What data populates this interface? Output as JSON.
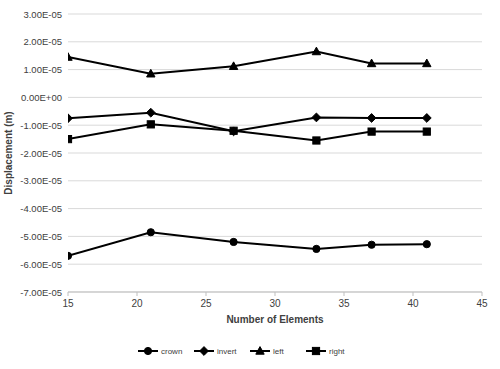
{
  "chart_data": {
    "type": "line",
    "x_label": "Number of Elements",
    "y_label": "Displacement (m)",
    "x": [
      15,
      21,
      27,
      33,
      37,
      41
    ],
    "series": [
      {
        "name": "crown",
        "color": "#000000",
        "marker": "circle",
        "line_style": "solid",
        "values": [
          -5.7e-05,
          -4.85e-05,
          -5.2e-05,
          -5.45e-05,
          -5.3e-05,
          -5.28e-05
        ]
      },
      {
        "name": "invert",
        "color": "#000000",
        "marker": "diamond",
        "line_style": "solid",
        "values": [
          -7.5e-06,
          -5.5e-06,
          -1.22e-05,
          -7.2e-06,
          -7.4e-06,
          -7.4e-06
        ]
      },
      {
        "name": "left",
        "color": "#000000",
        "marker": "triangle",
        "line_style": "solid",
        "values": [
          1.45e-05,
          8.5e-06,
          1.12e-05,
          1.65e-05,
          1.22e-05,
          1.22e-05
        ]
      },
      {
        "name": "right",
        "color": "#000000",
        "marker": "square",
        "line_style": "solid",
        "values": [
          -1.5e-05,
          -9.7e-06,
          -1.2e-05,
          -1.55e-05,
          -1.23e-05,
          -1.23e-05
        ]
      }
    ],
    "xlim": [
      15,
      45
    ],
    "xticks": [
      15,
      20,
      25,
      30,
      35,
      40,
      45
    ],
    "ylim": [
      -7e-05,
      3e-05
    ],
    "yticks": [
      {
        "value": -7e-05,
        "label": "-7.00E-05"
      },
      {
        "value": -6e-05,
        "label": "-6.00E-05"
      },
      {
        "value": -5e-05,
        "label": "-5.00E-05"
      },
      {
        "value": -4e-05,
        "label": "-4.00E-05"
      },
      {
        "value": -3e-05,
        "label": "-3.00E-05"
      },
      {
        "value": -2e-05,
        "label": "-2.00E-05"
      },
      {
        "value": -1e-05,
        "label": "-1.00E-05"
      },
      {
        "value": 0,
        "label": "0.00E+00"
      },
      {
        "value": 1e-05,
        "label": "1.00E-05"
      },
      {
        "value": 2e-05,
        "label": "2.00E-05"
      },
      {
        "value": 3e-05,
        "label": "3.00E-05"
      }
    ],
    "grid": true,
    "legend": "bottom"
  }
}
